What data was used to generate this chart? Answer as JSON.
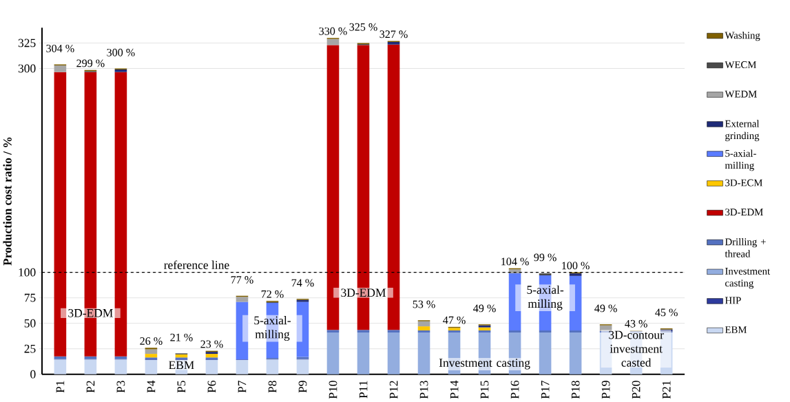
{
  "chart_data": {
    "type": "bar",
    "stacked": true,
    "ylabel": "Production cost ratio / %",
    "categories": [
      "P1",
      "P2",
      "P3",
      "P4",
      "P5",
      "P6",
      "P7",
      "P8",
      "P9",
      "P10",
      "P11",
      "P12",
      "P13",
      "P14",
      "P15",
      "P16",
      "P17",
      "P18",
      "P19",
      "P20",
      "P21"
    ],
    "series": [
      {
        "name": "EBM",
        "color": "#c9d8f2",
        "values": [
          14.5,
          14.5,
          14.5,
          14,
          14,
          14,
          14,
          14.5,
          14.5,
          null,
          null,
          null,
          null,
          null,
          null,
          null,
          null,
          null,
          41,
          41,
          41
        ]
      },
      {
        "name": "HIP",
        "color": "#2e3b9e",
        "values": [
          0.5,
          0.5,
          0.5,
          0.5,
          0.5,
          0.5,
          0.5,
          0.5,
          0.5,
          null,
          null,
          null,
          null,
          null,
          null,
          null,
          null,
          null,
          null,
          null,
          null
        ]
      },
      {
        "name": "Investment casting",
        "color": "#93addf",
        "values": [
          null,
          null,
          null,
          null,
          null,
          null,
          null,
          null,
          null,
          41,
          41,
          41,
          41,
          41,
          41,
          41,
          41,
          41,
          null,
          null,
          null
        ]
      },
      {
        "name": "Drilling + thread",
        "color": "#5471c0",
        "values": [
          2.5,
          2.5,
          2.5,
          2,
          2,
          2,
          null,
          1,
          2,
          2.5,
          2.5,
          2.5,
          2,
          2,
          2,
          2,
          2,
          2,
          1.5,
          1,
          1
        ]
      },
      {
        "name": "3D-EDM",
        "color": "#c00000",
        "values": [
          279,
          279,
          279,
          null,
          null,
          null,
          null,
          null,
          null,
          279.5,
          279.5,
          280,
          null,
          null,
          null,
          null,
          null,
          null,
          null,
          null,
          null
        ]
      },
      {
        "name": "3D-ECM",
        "color": "#ffc800",
        "values": [
          null,
          null,
          null,
          3.5,
          3,
          3.5,
          null,
          null,
          null,
          null,
          null,
          null,
          4,
          2.5,
          3,
          null,
          null,
          null,
          null,
          null,
          null
        ]
      },
      {
        "name": "5-axial-milling",
        "color": "#5b7cff",
        "values": [
          null,
          null,
          null,
          null,
          null,
          null,
          56.5,
          54,
          54,
          null,
          null,
          null,
          null,
          null,
          null,
          56,
          54,
          53.5,
          null,
          null,
          null
        ]
      },
      {
        "name": "External grinding",
        "color": "#1f2b78",
        "values": [
          null,
          null,
          2.5,
          null,
          null,
          2,
          null,
          null,
          2,
          null,
          null,
          2.5,
          null,
          null,
          2,
          null,
          null,
          2.5,
          null,
          null,
          2
        ]
      },
      {
        "name": "WEDM",
        "color": "#a6a6a6",
        "values": [
          6.5,
          null,
          null,
          4.5,
          null,
          null,
          5,
          null,
          null,
          6,
          null,
          null,
          5,
          null,
          null,
          4,
          null,
          null,
          5.5,
          null,
          null
        ]
      },
      {
        "name": "WECM",
        "color": "#4a4a4a",
        "values": [
          null,
          1,
          null,
          null,
          1,
          null,
          null,
          1,
          null,
          null,
          1,
          null,
          null,
          null,
          null,
          null,
          2,
          null,
          null,
          0.5,
          null
        ]
      },
      {
        "name": "Washing",
        "color": "#7f6000",
        "values": [
          1,
          1,
          1,
          1.5,
          null,
          1,
          1,
          1,
          1,
          1,
          1,
          1,
          1,
          1,
          1,
          1,
          null,
          1,
          1,
          0.5,
          1
        ]
      }
    ],
    "totals": [
      "304 %",
      "299 %",
      "300 %",
      "26 %",
      "21 %",
      "23 %",
      "77 %",
      "72 %",
      "74 %",
      "330 %",
      "325 %",
      "327 %",
      "53 %",
      "47 %",
      "49 %",
      "104 %",
      "99 %",
      "100 %",
      "49 %",
      "43 %",
      "45 %"
    ],
    "ylim": [
      0,
      340
    ],
    "yticks": [
      0,
      25,
      50,
      75,
      100,
      300,
      325
    ],
    "grid": "y",
    "legend": "right",
    "ref_lines": [
      {
        "axis": "y",
        "value": 100,
        "label": "reference line",
        "line_style": "dashed",
        "color": "#000000"
      }
    ],
    "annotations": [
      "3D-EDM",
      "EBM",
      "5-axial-milling",
      "3D-EDM",
      "Investment casting",
      "5-axial-milling",
      "3D-contour investment casted"
    ]
  }
}
